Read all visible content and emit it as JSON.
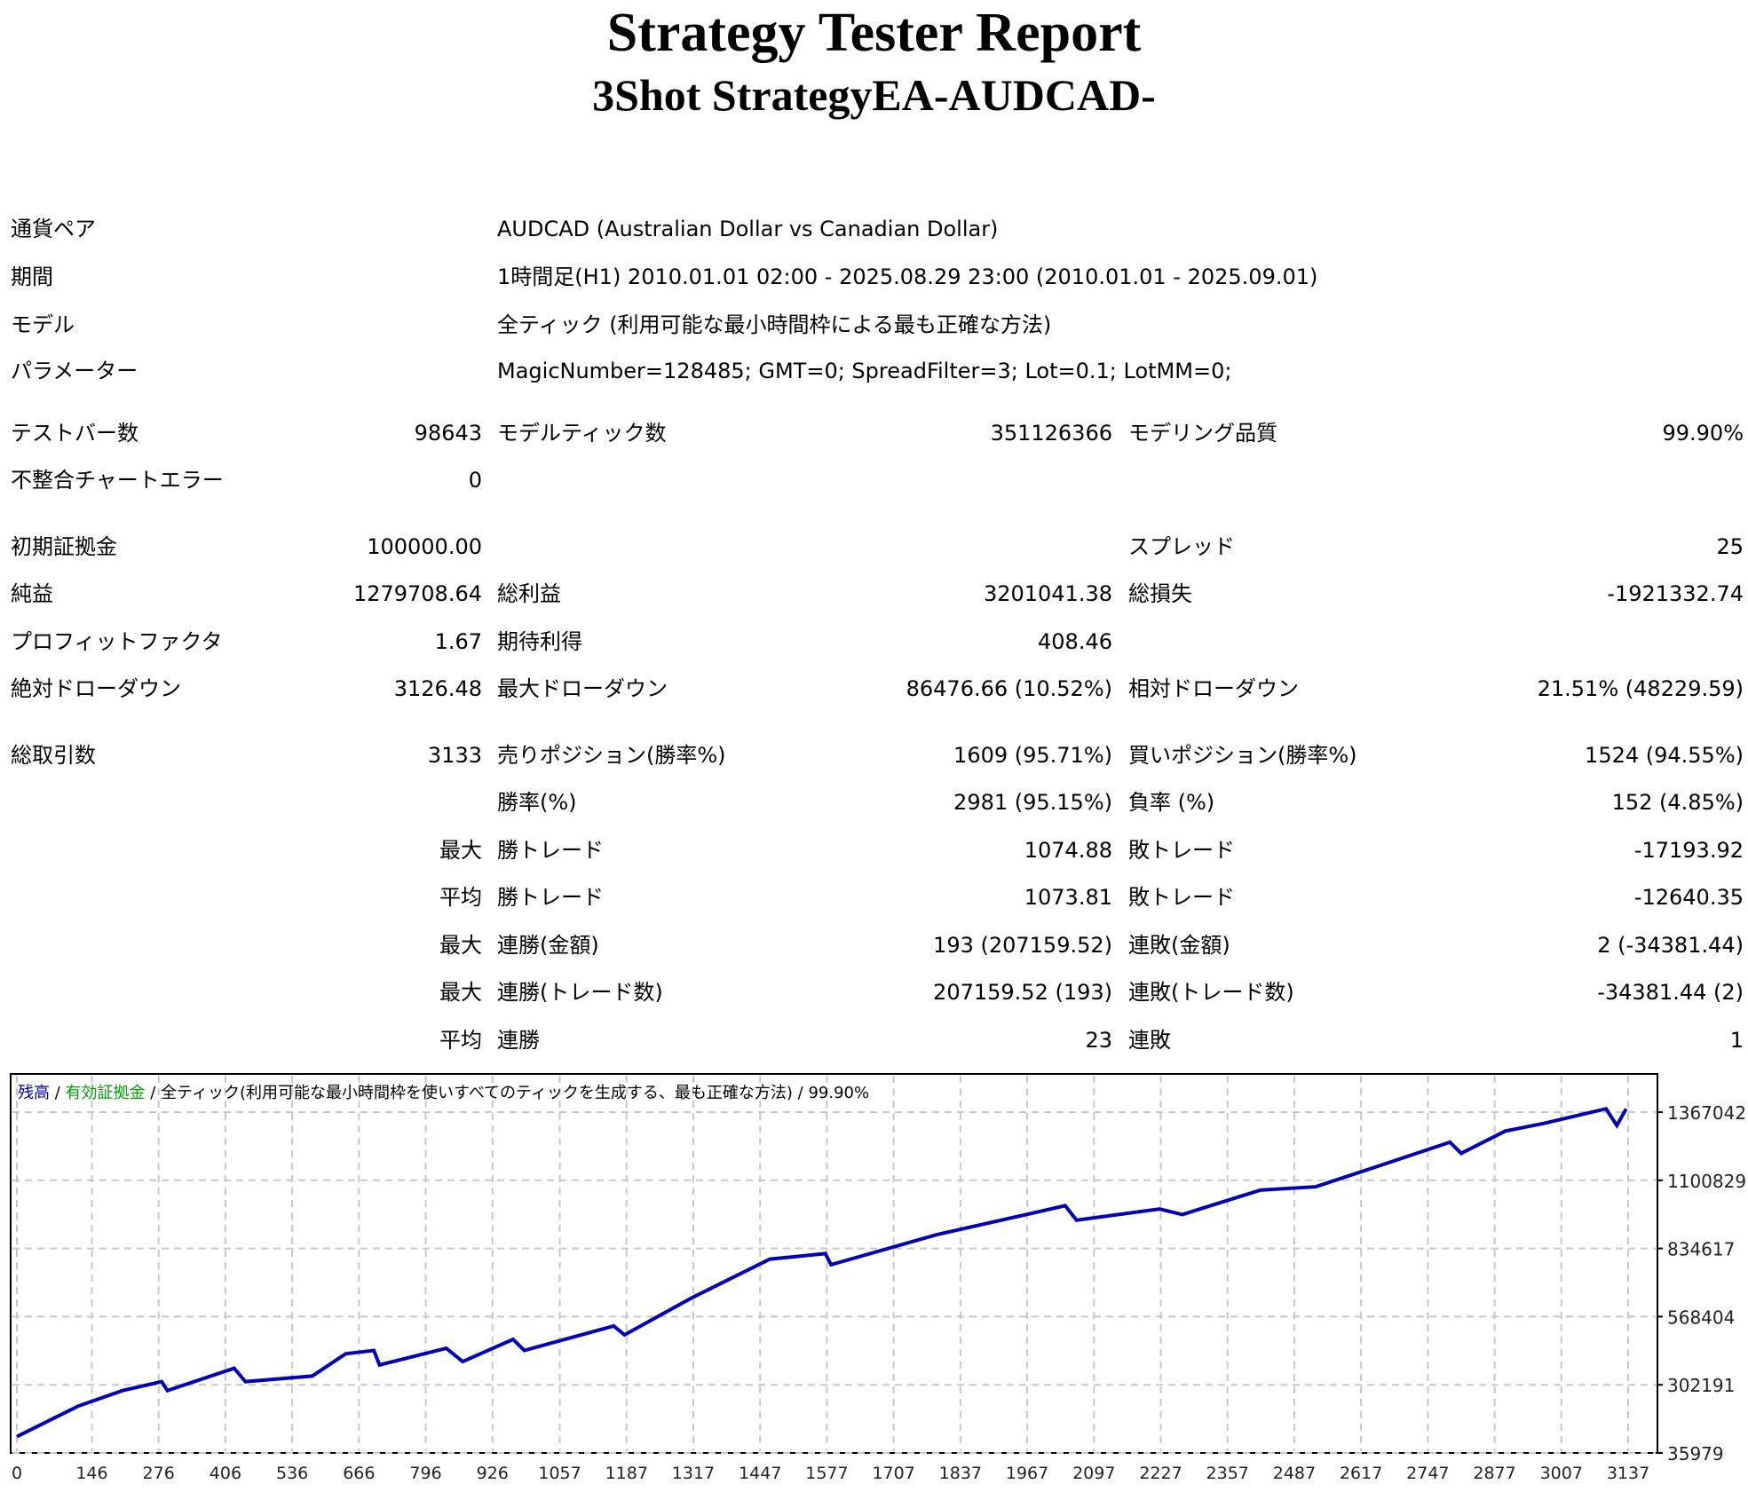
{
  "header": {
    "title": "Strategy Tester Report",
    "subtitle": "3Shot StrategyEA-AUDCAD-"
  },
  "info_rows": [
    {
      "label": "通貨ペア",
      "value": "AUDCAD (Australian Dollar vs Canadian Dollar)"
    },
    {
      "label": "期間",
      "value": "1時間足(H1) 2010.01.01 02:00 - 2025.08.29 23:00 (2010.01.01 - 2025.09.01)"
    },
    {
      "label": "モデル",
      "value": "全ティック (利用可能な最小時間枠による最も正確な方法)"
    },
    {
      "label": "パラメーター",
      "value": "MagicNumber=128485; GMT=0; SpreadFilter=3; Lot=0.1; LotMM=0;"
    }
  ],
  "stats_rows": [
    [
      "テストバー数",
      "98643",
      "モデルティック数",
      "351126366",
      "モデリング品質",
      "99.90%"
    ],
    [
      "不整合チャートエラー",
      "0",
      "",
      "",
      "",
      ""
    ],
    [
      "初期証拠金",
      "100000.00",
      "",
      "",
      "スプレッド",
      "25"
    ],
    [
      "純益",
      "1279708.64",
      "総利益",
      "3201041.38",
      "総損失",
      "-1921332.74"
    ],
    [
      "プロフィットファクタ",
      "1.67",
      "期待利得",
      "408.46",
      "",
      ""
    ],
    [
      "絶対ドローダウン",
      "3126.48",
      "最大ドローダウン",
      "86476.66 (10.52%)",
      "相対ドローダウン",
      "21.51% (48229.59)"
    ],
    [
      "総取引数",
      "3133",
      "売りポジション(勝率%)",
      "1609 (95.71%)",
      "買いポジション(勝率%)",
      "1524 (94.55%)"
    ],
    [
      "",
      "",
      "勝率(%)",
      "2981 (95.15%)",
      "負率 (%)",
      "152 (4.85%)"
    ],
    [
      "",
      "最大",
      "勝トレード",
      "1074.88",
      "敗トレード",
      "-17193.92"
    ],
    [
      "",
      "平均",
      "勝トレード",
      "1073.81",
      "敗トレード",
      "-12640.35"
    ],
    [
      "",
      "最大",
      "連勝(金額)",
      "193 (207159.52)",
      "連敗(金額)",
      "2 (-34381.44)"
    ],
    [
      "",
      "最大",
      "連勝(トレード数)",
      "207159.52 (193)",
      "連敗(トレード数)",
      "-34381.44 (2)"
    ],
    [
      "",
      "平均",
      "連勝",
      "23",
      "連敗",
      "1"
    ]
  ],
  "chart_data": {
    "type": "line",
    "legend": {
      "balance": "残高",
      "sep1": " / ",
      "equity": "有効証拠金",
      "sep2": " / ",
      "model": "全ティック(利用可能な最小時間枠を使いすべてのティックを生成する、最も正確な方法)",
      "sep3": " / ",
      "quality": "99.90%"
    },
    "colors": {
      "balance": "#0000b4",
      "equity": "#00b400",
      "grid": "#c8c8c8"
    },
    "grid": true,
    "x_ticks": [
      "0",
      "146",
      "276",
      "406",
      "536",
      "666",
      "796",
      "926",
      "1057",
      "1187",
      "1317",
      "1447",
      "1577",
      "1707",
      "1837",
      "1967",
      "2097",
      "2227",
      "2357",
      "2487",
      "2617",
      "2747",
      "2877",
      "3007",
      "3137"
    ],
    "y_ticks": [
      "35979",
      "302191",
      "568404",
      "834617",
      "1100829",
      "1367042"
    ],
    "xlim": [
      0,
      3137
    ],
    "ylim": [
      35979,
      1367042
    ],
    "series": [
      {
        "x": [
          0,
          119,
          206,
          282,
          293,
          423,
          445,
          575,
          640,
          695,
          706,
          836,
          868,
          966,
          988,
          1162,
          1183,
          1313,
          1466,
          1574,
          1585,
          1791,
          1965,
          2041,
          2063,
          2225,
          2269,
          2421,
          2529,
          2660,
          2790,
          2812,
          2898,
          2974,
          3094,
          3115,
          3133
        ],
        "y": [
          100000,
          218700,
          279600,
          314400,
          279600,
          366600,
          314400,
          336100,
          423100,
          436200,
          379600,
          444900,
          392700,
          479700,
          436200,
          531900,
          497100,
          640600,
          792900,
          814600,
          771100,
          888600,
          966900,
          1001700,
          945100,
          988600,
          966900,
          1062600,
          1075600,
          1162600,
          1249600,
          1206100,
          1293100,
          1323600,
          1380100,
          1314900,
          1379708
        ]
      }
    ]
  }
}
